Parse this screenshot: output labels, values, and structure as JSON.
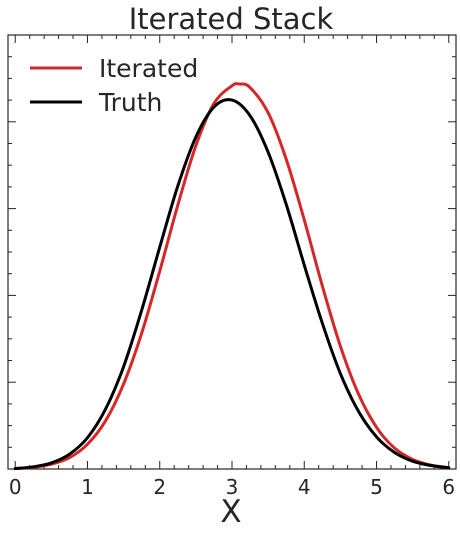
{
  "chart_data": {
    "type": "line",
    "title": "Iterated Stack",
    "xlabel": "X",
    "ylabel": "",
    "xlim": [
      -0.1,
      6.1
    ],
    "ylim": [
      0,
      1.0
    ],
    "xticks": [
      0,
      1,
      2,
      3,
      4,
      5,
      6
    ],
    "xtick_labels": [
      "0",
      "1",
      "2",
      "3",
      "4",
      "5",
      "6"
    ],
    "grid": false,
    "legend_position": "top-left",
    "series": [
      {
        "name": "Iterated",
        "color": "#d62728",
        "x": [
          0.0,
          0.25,
          0.5,
          0.75,
          1.0,
          1.25,
          1.5,
          1.75,
          2.0,
          2.25,
          2.5,
          2.75,
          3.0,
          3.1,
          3.25,
          3.5,
          3.75,
          4.0,
          4.25,
          4.5,
          4.75,
          5.0,
          5.25,
          5.5,
          5.75,
          6.0
        ],
        "y": [
          0.001,
          0.004,
          0.011,
          0.026,
          0.057,
          0.111,
          0.196,
          0.313,
          0.456,
          0.608,
          0.745,
          0.842,
          0.883,
          0.887,
          0.879,
          0.821,
          0.714,
          0.574,
          0.422,
          0.283,
          0.173,
          0.096,
          0.048,
          0.022,
          0.009,
          0.003
        ]
      },
      {
        "name": "Truth",
        "color": "#000000",
        "x": [
          0.0,
          0.25,
          0.5,
          0.75,
          1.0,
          1.25,
          1.5,
          1.75,
          2.0,
          2.25,
          2.5,
          2.75,
          3.0,
          3.25,
          3.5,
          3.75,
          4.0,
          4.25,
          4.5,
          4.75,
          5.0,
          5.25,
          5.5,
          5.75,
          6.0
        ],
        "y": [
          0.001,
          0.005,
          0.014,
          0.034,
          0.072,
          0.138,
          0.236,
          0.366,
          0.511,
          0.652,
          0.765,
          0.834,
          0.85,
          0.814,
          0.73,
          0.61,
          0.47,
          0.336,
          0.22,
          0.133,
          0.074,
          0.038,
          0.018,
          0.008,
          0.003
        ]
      }
    ]
  }
}
